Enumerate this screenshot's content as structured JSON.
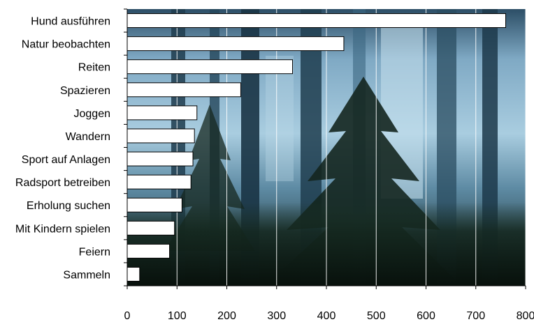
{
  "chart_data": {
    "type": "bar",
    "orientation": "horizontal",
    "categories": [
      "Hund ausführen",
      "Natur beobachten",
      "Reiten",
      "Spazieren",
      "Joggen",
      "Wandern",
      "Sport auf Anlagen",
      "Radsport betreiben",
      "Erholung suchen",
      "Mit Kindern spielen",
      "Feiern",
      "Sammeln"
    ],
    "values": [
      760,
      435,
      332,
      228,
      140,
      135,
      132,
      128,
      110,
      95,
      85,
      25
    ],
    "xlim": [
      0,
      800
    ],
    "x_ticks": [
      0,
      100,
      200,
      300,
      400,
      500,
      600,
      700,
      800
    ],
    "grid": "vertical",
    "title": "",
    "xlabel": "",
    "ylabel": "",
    "background": "forest photograph (conifer trees in fog)",
    "colors": {
      "bar_fill": "#ffffff",
      "bar_stroke": "#000000",
      "grid": "#ffffff",
      "sky": "#9fc4da",
      "forest_dark": "#0d1a14",
      "trunk": "#1e3c4e"
    }
  }
}
